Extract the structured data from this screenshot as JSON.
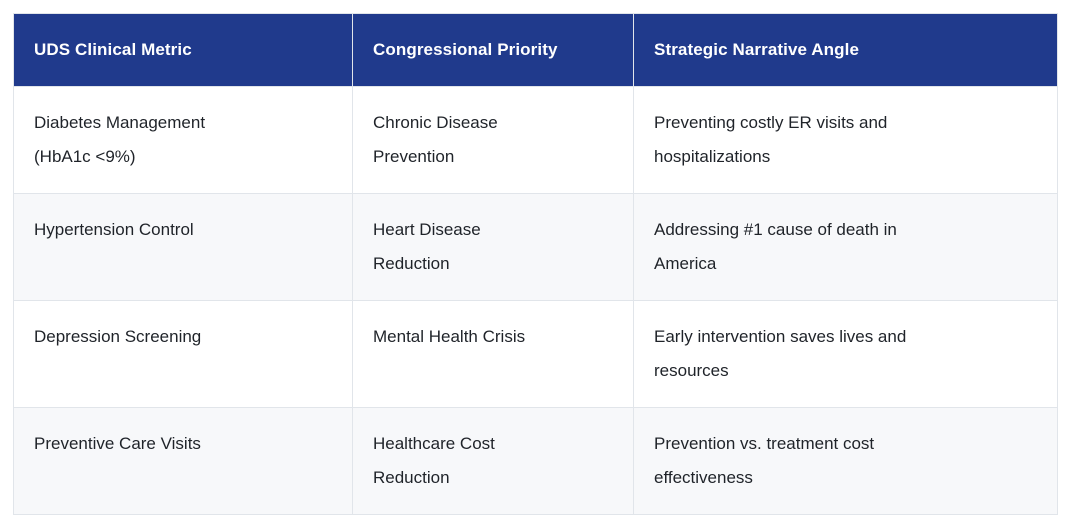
{
  "table": {
    "headers": [
      "UDS Clinical Metric",
      "Congressional Priority",
      "Strategic Narrative Angle"
    ],
    "rows": [
      {
        "cells": [
          "Diabetes Management\n(HbA1c <9%)",
          "Chronic Disease\nPrevention",
          "Preventing costly ER visits and\nhospitalizations"
        ]
      },
      {
        "cells": [
          "Hypertension Control",
          "Heart Disease\nReduction",
          "Addressing #1 cause of death in\nAmerica"
        ]
      },
      {
        "cells": [
          "Depression Screening",
          "Mental Health Crisis",
          "Early intervention saves lives and\nresources"
        ]
      },
      {
        "cells": [
          "Preventive Care Visits",
          "Healthcare Cost\nReduction",
          "Prevention vs. treatment cost\neffectiveness"
        ]
      }
    ]
  },
  "colors": {
    "header_bg": "#203a8c",
    "header_text": "#ffffff",
    "body_text": "#1f2329",
    "border": "#e1e5ea",
    "stripe_bg": "#f7f8fa",
    "row_bg": "#ffffff",
    "page_bg": "#ffffff"
  }
}
